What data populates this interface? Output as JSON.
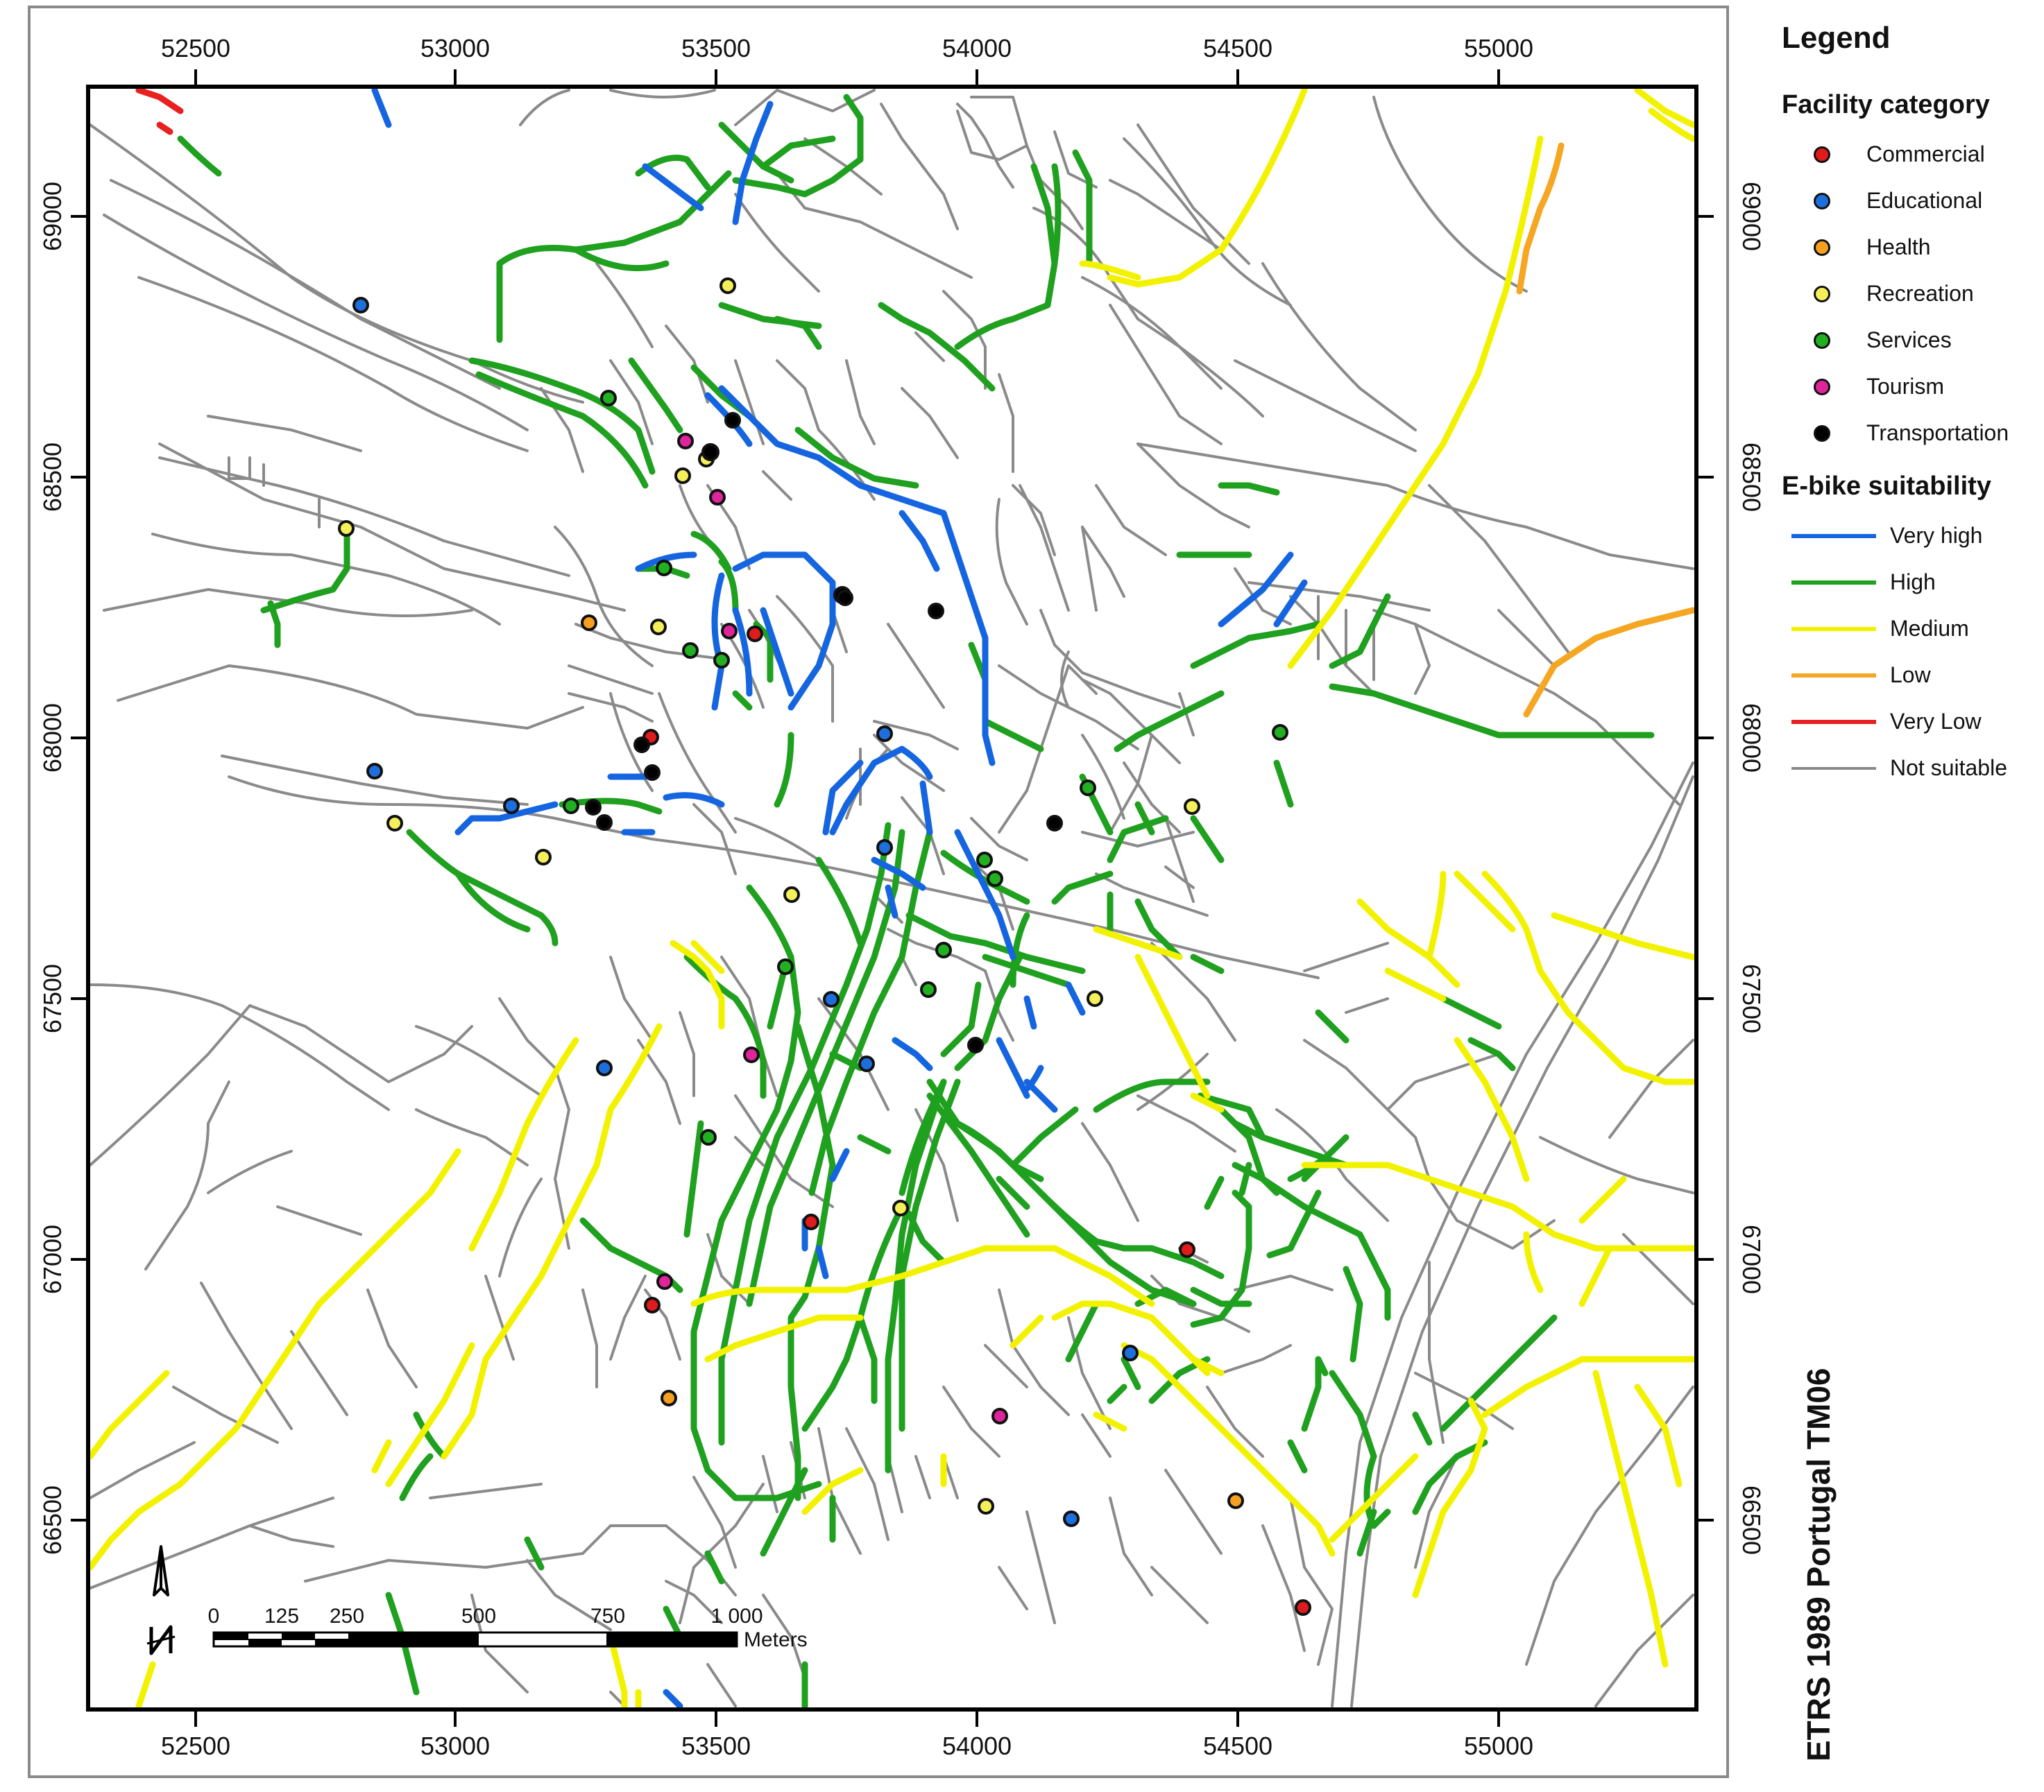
{
  "legend": {
    "title": "Legend",
    "facility_title": "Facility category",
    "facilities": [
      {
        "label": "Commercial",
        "color": "#e01b1b",
        "icon": "commercial-dot-icon"
      },
      {
        "label": "Educational",
        "color": "#1e6fdc",
        "icon": "educational-dot-icon"
      },
      {
        "label": "Health",
        "color": "#f5a01e",
        "icon": "health-dot-icon"
      },
      {
        "label": "Recreation",
        "color": "#f5f05a",
        "icon": "recreation-dot-icon"
      },
      {
        "label": "Services",
        "color": "#22b022",
        "icon": "services-dot-icon"
      },
      {
        "label": "Tourism",
        "color": "#e0249c",
        "icon": "tourism-dot-icon"
      },
      {
        "label": "Transportation",
        "color": "#000000",
        "icon": "transportation-dot-icon"
      }
    ],
    "suitability_title": "E-bike suitability",
    "suitability": [
      {
        "label": "Very high",
        "color": "#1565e0"
      },
      {
        "label": "High",
        "color": "#1fa01f"
      },
      {
        "label": "Medium",
        "color": "#f2f200"
      },
      {
        "label": "Low",
        "color": "#f5a623"
      },
      {
        "label": "Very Low",
        "color": "#e82020"
      },
      {
        "label": "Not suitable",
        "color": "#8a8a8a"
      }
    ]
  },
  "axes": {
    "x_ticks": [
      "52500",
      "53000",
      "53500",
      "54000",
      "54500",
      "55000"
    ],
    "y_ticks": [
      "69000",
      "68500",
      "68000",
      "67500",
      "67000",
      "66500"
    ]
  },
  "scale_bar": {
    "labels": [
      "0",
      "125",
      "250",
      "500",
      "750",
      "1 000"
    ],
    "unit": "Meters"
  },
  "crs_label": "ETRS 1989 Portugal TM06",
  "north_arrow": {
    "icon": "north-arrow-icon",
    "letter": "N"
  }
}
